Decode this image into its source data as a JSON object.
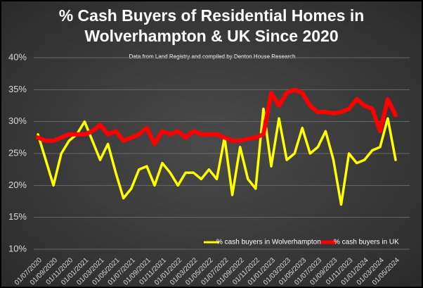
{
  "chart_data": {
    "type": "line",
    "title": "% Cash Buyers of Residential Homes in Wolverhampton & UK Since 2020",
    "subtitle": "Data from Land Registry and compiled by Denton House Research",
    "categories": [
      "01/07/2020",
      null,
      "01/09/2020",
      null,
      "01/11/2020",
      null,
      "01/01/2021",
      null,
      "01/03/2021",
      null,
      "01/05/2021",
      null,
      "01/07/2021",
      null,
      "01/09/2021",
      null,
      "01/11/2021",
      null,
      "01/01/2022",
      null,
      "01/03/2022",
      null,
      "01/05/2022",
      null,
      "01/07/2022",
      null,
      "01/09/2022",
      null,
      "01/11/2022",
      null,
      "01/01/2023",
      null,
      "01/03/2023",
      null,
      "01/05/2023",
      null,
      "01/07/2023",
      null,
      "01/09/2023",
      null,
      "01/11/2023",
      null,
      "01/01/2024",
      null,
      "01/03/2024",
      null,
      "01/05/2024"
    ],
    "series": [
      {
        "name": "% cash buyers in Wolverhampton",
        "color": "#ffff00",
        "values": [
          28,
          24,
          20,
          25,
          27,
          28,
          30,
          27,
          24,
          26.5,
          22,
          18,
          19.5,
          22.5,
          23,
          20,
          23.5,
          22,
          20,
          22,
          22,
          21,
          22.5,
          21,
          27.5,
          18.5,
          26,
          21,
          19.5,
          32,
          23,
          30.5,
          24,
          25,
          29,
          25,
          26,
          28.5,
          24,
          17,
          25,
          23.5,
          24,
          25.5,
          26,
          30.5,
          24
        ]
      },
      {
        "name": "% cash buyers in UK",
        "color": "#ff0000",
        "values": [
          27.5,
          27,
          27,
          27.5,
          28,
          28,
          28,
          28.5,
          29.5,
          28,
          28.5,
          27,
          27.5,
          28,
          29,
          26.5,
          28.5,
          28,
          28.5,
          27.5,
          28.5,
          28,
          28,
          28,
          27.5,
          27,
          27,
          27.3,
          27.5,
          28,
          34.5,
          32.5,
          34.5,
          35,
          34.5,
          32.5,
          31.5,
          31.5,
          31.3,
          31.5,
          32,
          33.5,
          32.5,
          32,
          28.5,
          33.5,
          31
        ]
      }
    ],
    "ylim": [
      10,
      40
    ],
    "yticks": [
      {
        "value": 10,
        "label": "10%"
      },
      {
        "value": 15,
        "label": "15%"
      },
      {
        "value": 20,
        "label": "20%"
      },
      {
        "value": 25,
        "label": "25%"
      },
      {
        "value": 30,
        "label": "30%"
      },
      {
        "value": 35,
        "label": "35%"
      },
      {
        "value": 40,
        "label": "40%"
      }
    ],
    "grid": true,
    "legend": "bottom-right"
  }
}
